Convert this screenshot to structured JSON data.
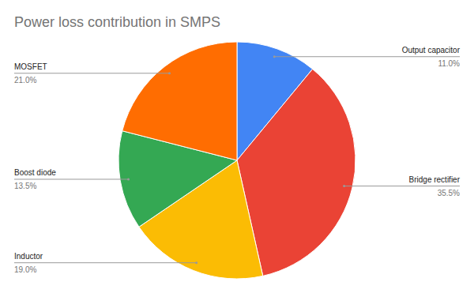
{
  "chart_data": {
    "type": "pie",
    "title": "Power loss contribution in SMPS",
    "categories": [
      "Output capacitor",
      "Bridge rectifier",
      "Inductor",
      "Boost diode",
      "MOSFET"
    ],
    "values": [
      11.0,
      35.5,
      19.0,
      13.5,
      21.0
    ],
    "value_labels": [
      "11.0%",
      "35.5%",
      "19.0%",
      "13.5%",
      "21.0%"
    ],
    "colors": [
      "#4285f4",
      "#ea4335",
      "#fbbc04",
      "#34a853",
      "#ff6d01"
    ],
    "data_labels": true
  }
}
